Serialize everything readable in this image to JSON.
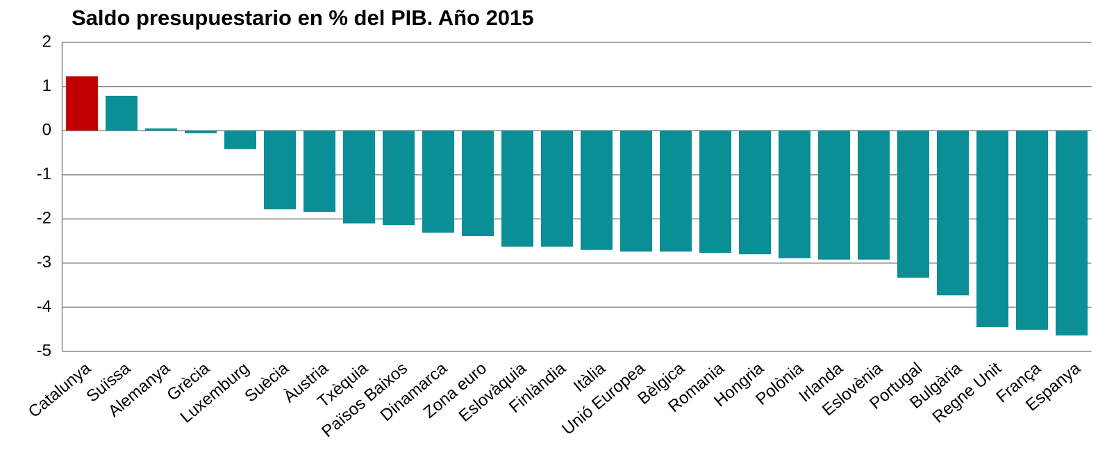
{
  "chart_data": {
    "type": "bar",
    "title": "Saldo presupuestario en % del PIB. Año 2015",
    "categories": [
      "Catalunya",
      "Suïssa",
      "Alemanya",
      "Grècia",
      "Luxemburg",
      "Suècia",
      "Àustria",
      "Txèquia",
      "Països Baixos",
      "Dinamarca",
      "Zona euro",
      "Eslovàquia",
      "Finlàndia",
      "Itàlia",
      "Unió Europea",
      "Bèlgica",
      "Romania",
      "Hongria",
      "Polònia",
      "Irlanda",
      "Eslovènia",
      "Portugal",
      "Bulgària",
      "Regne Unit",
      "França",
      "Espanya"
    ],
    "values": [
      1.23,
      0.79,
      0.05,
      -0.06,
      -0.42,
      -1.78,
      -1.84,
      -2.1,
      -2.14,
      -2.31,
      -2.39,
      -2.63,
      -2.63,
      -2.7,
      -2.74,
      -2.74,
      -2.77,
      -2.8,
      -2.89,
      -2.92,
      -2.92,
      -3.33,
      -3.73,
      -4.45,
      -4.51,
      -4.64
    ],
    "colors": [
      "#c00000",
      "#0a8f96",
      "#0a8f96",
      "#0a8f96",
      "#0a8f96",
      "#0a8f96",
      "#0a8f96",
      "#0a8f96",
      "#0a8f96",
      "#0a8f96",
      "#0a8f96",
      "#0a8f96",
      "#0a8f96",
      "#0a8f96",
      "#0a8f96",
      "#0a8f96",
      "#0a8f96",
      "#0a8f96",
      "#0a8f96",
      "#0a8f96",
      "#0a8f96",
      "#0a8f96",
      "#0a8f96",
      "#0a8f96",
      "#0a8f96",
      "#0a8f96"
    ],
    "ylim": [
      -5,
      2
    ],
    "yticks": [
      -5,
      -4,
      -3,
      -2,
      -1,
      0,
      1,
      2
    ],
    "grid": true
  }
}
